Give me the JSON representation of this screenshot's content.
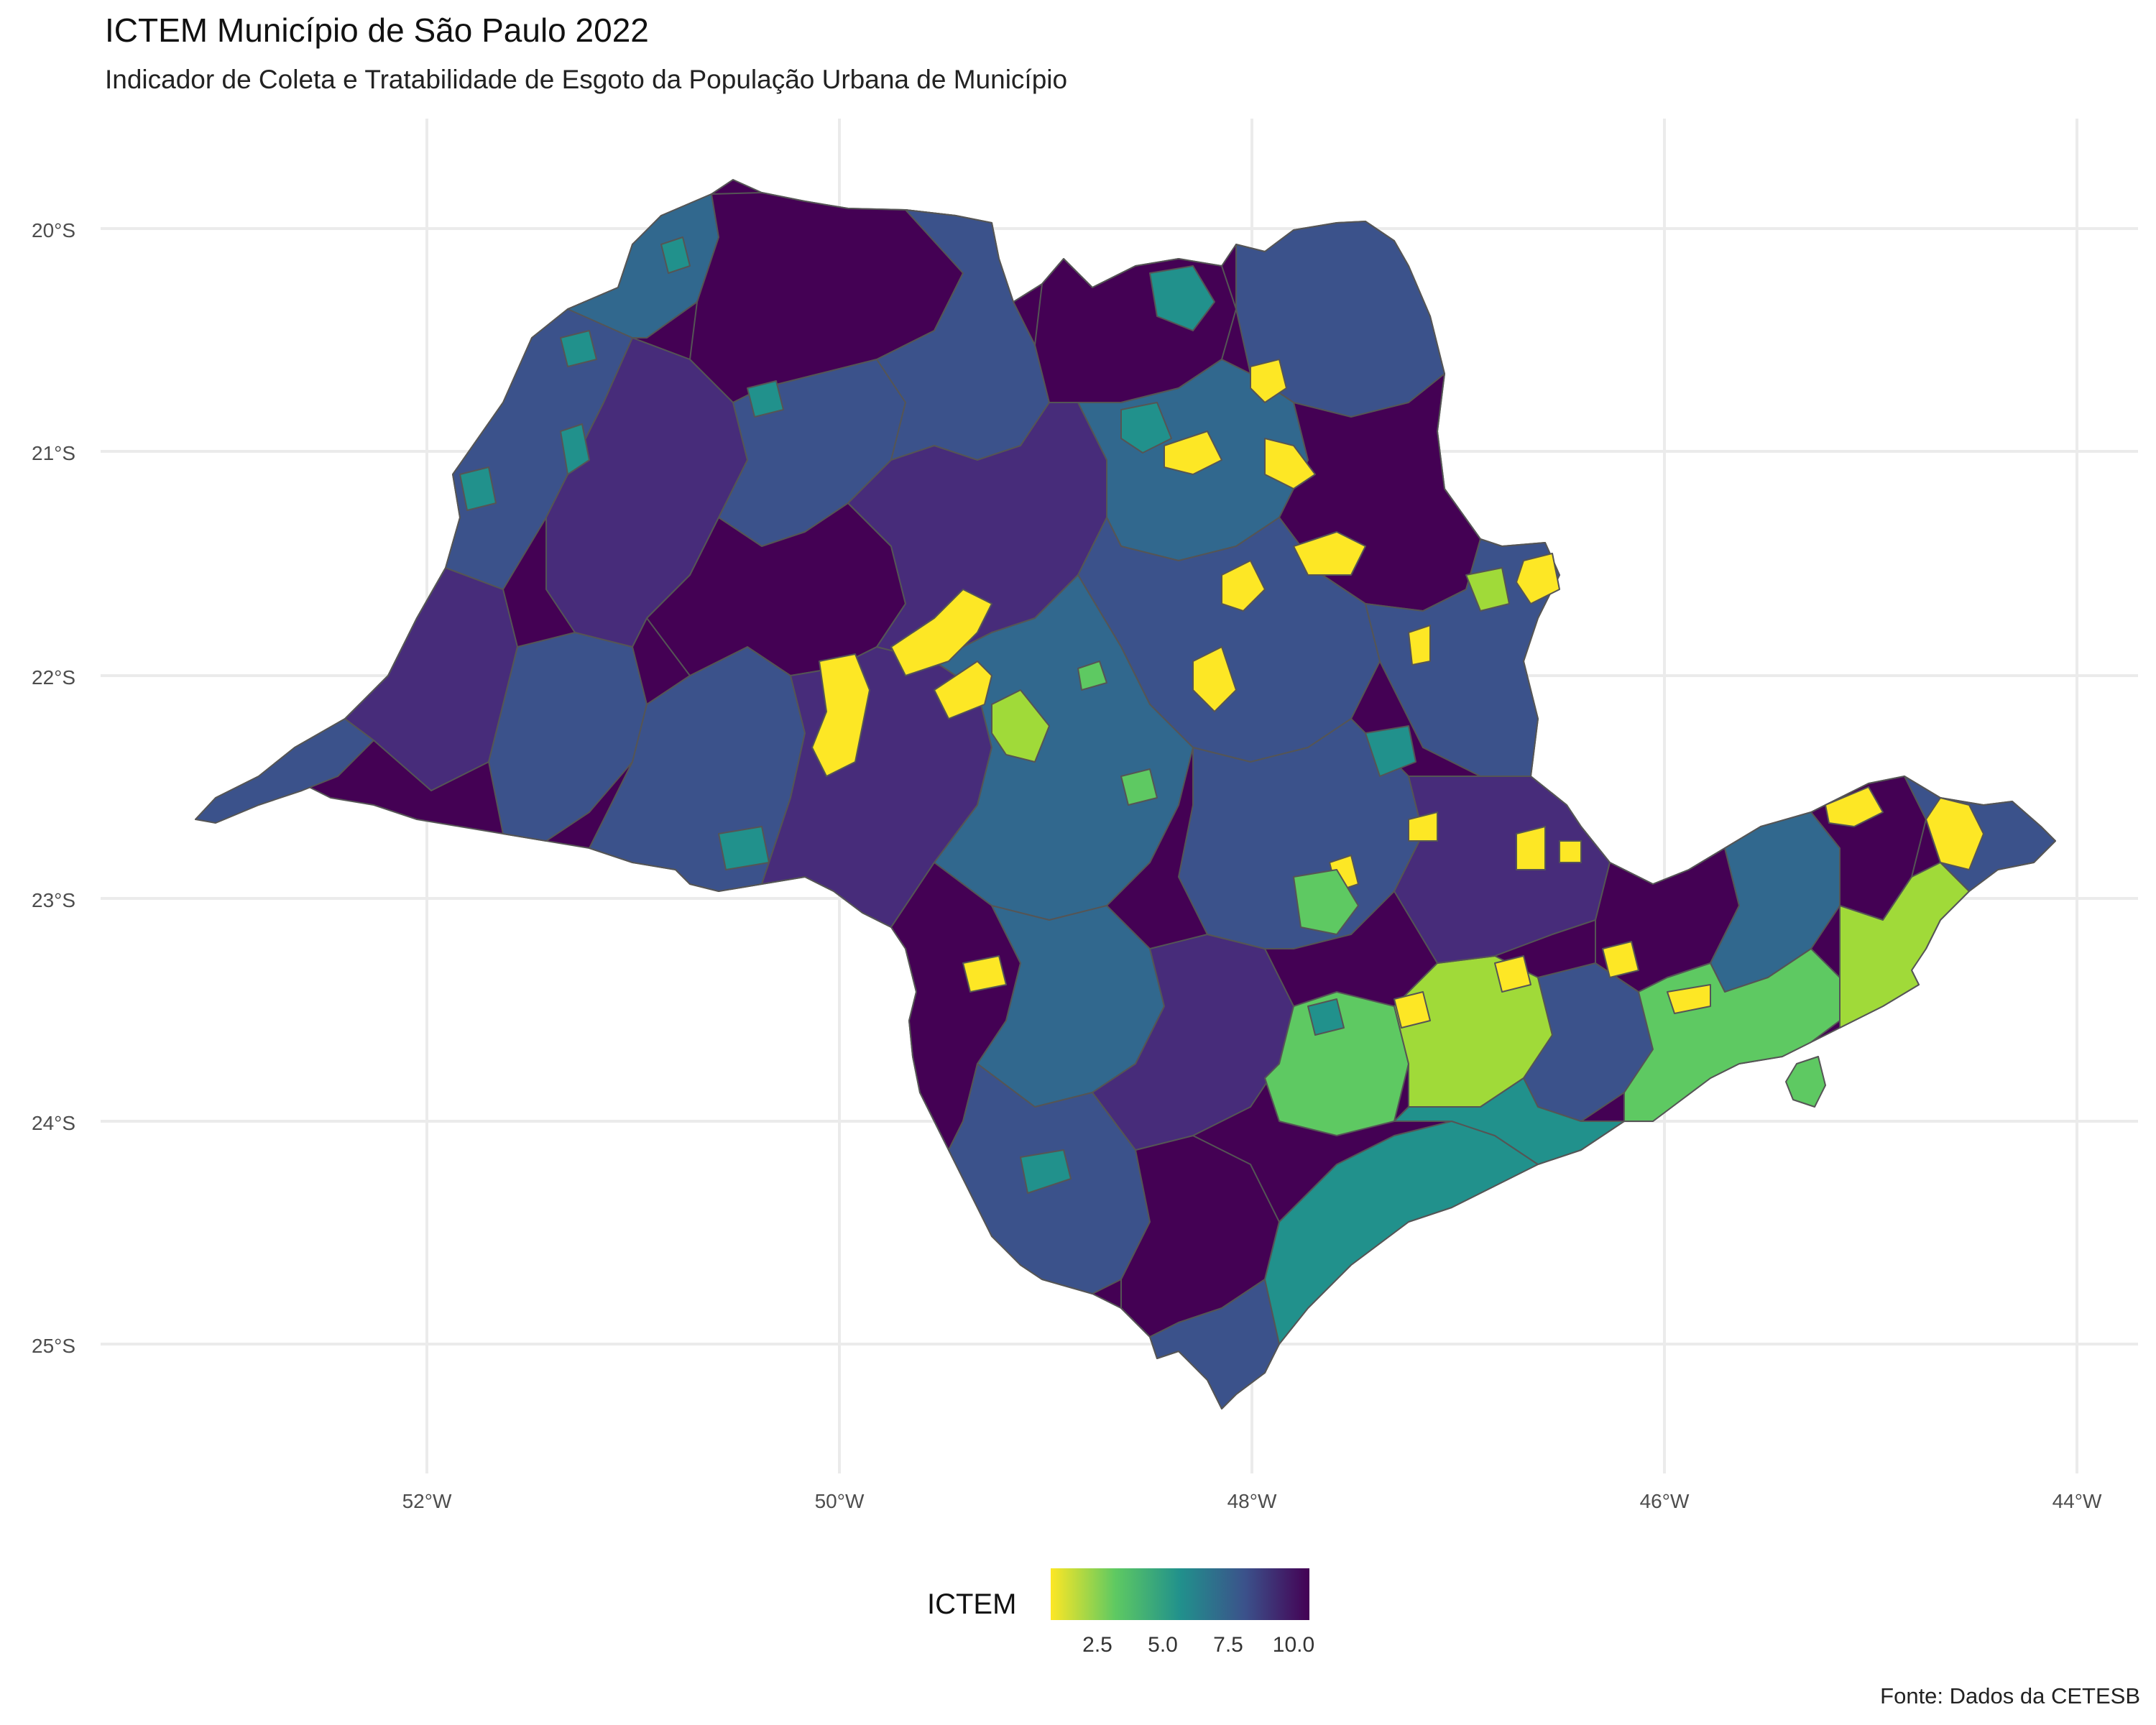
{
  "title": "ICTEM Município de São Paulo 2022",
  "subtitle": "Indicador de Coleta e Tratabilidade de Esgoto da População Urbana de Município",
  "caption": "Fonte: Dados da CETESB",
  "map": {
    "lat_ticks": [
      "20°S",
      "21°S",
      "22°S",
      "23°S",
      "24°S",
      "25°S"
    ],
    "lon_ticks": [
      "52°W",
      "50°W",
      "48°W",
      "46°W",
      "44°W"
    ],
    "fill_colors": {
      "very_low": "#fde725",
      "low": "#a0da39",
      "mid_low": "#5ec962",
      "mid": "#21918c",
      "mid_high": "#31688e",
      "high": "#3b528b",
      "very_high": "#482878",
      "max": "#440154"
    },
    "border_color": "#555555"
  },
  "legend": {
    "title": "ICTEM",
    "labels": [
      "2.5",
      "5.0",
      "7.5",
      "10.0"
    ],
    "scale": "viridis (reversed)"
  }
}
